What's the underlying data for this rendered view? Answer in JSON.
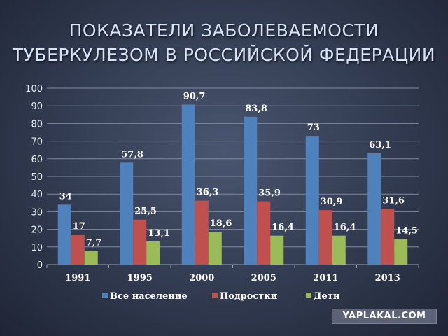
{
  "title": {
    "line1": "ПОКАЗАТЕЛИ ЗАБОЛЕВАЕМОСТИ",
    "line2": "ТУБЕРКУЛЕЗОМ В РОССИЙСКОЙ ФЕДЕРАЦИИ"
  },
  "watermark": "YAPLAKAL.COM",
  "chart_data": {
    "type": "bar",
    "categories": [
      "1991",
      "1995",
      "2000",
      "2005",
      "2011",
      "2013"
    ],
    "series": [
      {
        "name": "Все население",
        "color": "#4f81bd",
        "values": [
          34,
          57.8,
          90.7,
          83.8,
          73,
          63.1
        ],
        "labels": [
          "34",
          "57,8",
          "90,7",
          "83,8",
          "73",
          "63,1"
        ]
      },
      {
        "name": "Подростки",
        "color": "#c0504d",
        "values": [
          17,
          25.5,
          36.3,
          35.9,
          30.9,
          31.6
        ],
        "labels": [
          "17",
          "25,5",
          "36,3",
          "35,9",
          "30,9",
          "31,6"
        ]
      },
      {
        "name": "Дети",
        "color": "#9bbb59",
        "values": [
          7.7,
          13.1,
          18.6,
          16.4,
          16.4,
          14.5
        ],
        "labels": [
          "7,7",
          "13,1",
          "18,6",
          "16,4",
          "16,4",
          "14,5"
        ]
      }
    ],
    "ylim": [
      0,
      100
    ],
    "yticks": [
      "0",
      "10",
      "20",
      "30",
      "40",
      "50",
      "60",
      "70",
      "80",
      "90",
      "100"
    ],
    "grid": true,
    "legend": "bottom"
  }
}
